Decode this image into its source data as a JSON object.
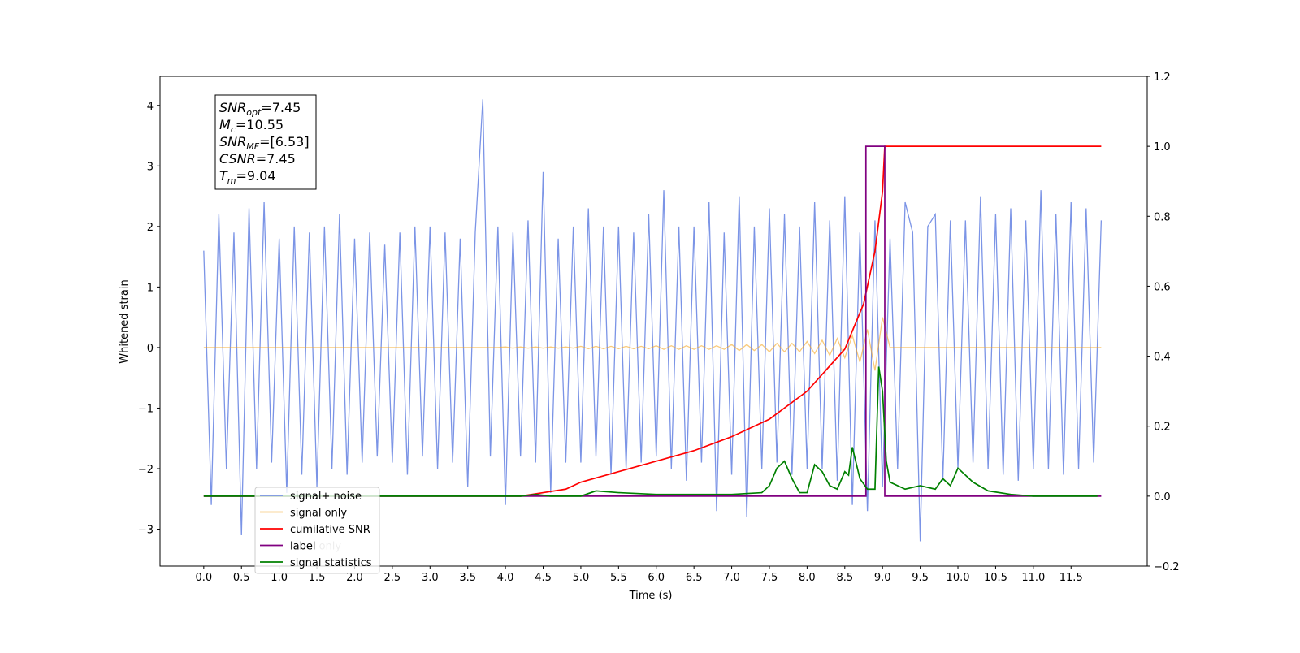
{
  "chart_data": {
    "type": "line",
    "xlabel": "Time (s)",
    "ylabel": "Whitened strain",
    "xlim": [
      -0.58,
      12.51
    ],
    "ylim": [
      -3.61,
      4.48
    ],
    "y2lim": [
      -0.2,
      1.2
    ],
    "xticks": [
      {
        "value": 0,
        "label": "0.0"
      },
      0.5,
      {
        "value": 1,
        "label": "1.0"
      },
      1.5,
      {
        "value": 2,
        "label": "2.0"
      },
      2.5,
      {
        "value": 3,
        "label": "3.0"
      },
      3.5,
      {
        "value": 4,
        "label": "4.0"
      },
      4.5,
      {
        "value": 5,
        "label": "5.0"
      },
      5.5,
      {
        "value": 6,
        "label": "6.0"
      },
      6.5,
      {
        "value": 7,
        "label": "7.0"
      },
      7.5,
      {
        "value": 8,
        "label": "8.0"
      },
      8.5,
      {
        "value": 9,
        "label": "9.0"
      },
      9.5,
      {
        "value": 10,
        "label": "10.0"
      },
      10.5,
      {
        "value": 11,
        "label": "11.0"
      },
      11.5
    ],
    "yticks": [
      {
        "value": -3,
        "label": "−3"
      },
      {
        "value": -2,
        "label": "−2"
      },
      {
        "value": -1,
        "label": "−1"
      },
      0,
      1,
      2,
      3,
      4
    ],
    "y2ticks": [
      {
        "value": -0.2,
        "label": "−0.2"
      },
      {
        "value": 0,
        "label": "0.0"
      },
      0.2,
      0.4,
      0.6,
      0.8,
      {
        "value": 1,
        "label": "1.0"
      },
      1.2
    ],
    "annotations": [
      {
        "main": "SNR",
        "sub": "opt",
        "rest": "=7.45"
      },
      {
        "main": "M",
        "sub": "c",
        "rest": "=10.55"
      },
      {
        "main": "SNR",
        "sub": "MF",
        "rest": "=[6.53]"
      },
      {
        "main": "CSNR",
        "sub": "",
        "rest": "=7.45"
      },
      {
        "main": "T",
        "sub": "m",
        "rest": "=9.04"
      }
    ],
    "x": [
      0,
      0.1,
      0.2,
      0.3,
      0.4,
      0.5,
      0.6,
      0.7,
      0.8,
      0.9,
      1,
      1.1,
      1.2,
      1.3,
      1.4,
      1.5,
      1.6,
      1.7,
      1.8,
      1.9,
      2,
      2.1,
      2.2,
      2.3,
      2.4,
      2.5,
      2.6,
      2.7,
      2.8,
      2.9,
      3,
      3.1,
      3.2,
      3.3,
      3.4,
      3.5,
      3.6,
      3.7,
      3.8,
      3.9,
      4,
      4.1,
      4.2,
      4.3,
      4.4,
      4.5,
      4.6,
      4.7,
      4.8,
      4.9,
      5,
      5.1,
      5.2,
      5.3,
      5.4,
      5.5,
      5.6,
      5.7,
      5.8,
      5.9,
      6,
      6.1,
      6.2,
      6.3,
      6.4,
      6.5,
      6.6,
      6.7,
      6.8,
      6.9,
      7,
      7.1,
      7.2,
      7.3,
      7.4,
      7.5,
      7.6,
      7.7,
      7.8,
      7.9,
      8,
      8.1,
      8.2,
      8.3,
      8.4,
      8.5,
      8.6,
      8.7,
      8.8,
      8.9,
      9,
      9.1,
      9.2,
      9.3,
      9.4,
      9.5,
      9.6,
      9.7,
      9.8,
      9.9,
      10,
      10.1,
      10.2,
      10.3,
      10.4,
      10.5,
      10.6,
      10.7,
      10.8,
      10.9,
      11,
      11.1,
      11.2,
      11.3,
      11.4,
      11.5,
      11.6,
      11.7,
      11.8,
      11.9
    ],
    "series": [
      {
        "name": "signal+ noise",
        "color": "#7b94e6",
        "axis": "y",
        "values": [
          1.6,
          -2.6,
          2.2,
          -2.0,
          1.9,
          -3.1,
          2.3,
          -2.0,
          2.4,
          -1.9,
          1.8,
          -2.4,
          2.0,
          -2.1,
          1.9,
          -2.3,
          2.0,
          -2.0,
          2.2,
          -2.1,
          1.8,
          -1.9,
          1.9,
          -1.8,
          1.7,
          -1.9,
          1.9,
          -2.1,
          2.0,
          -1.8,
          2.0,
          -2.0,
          1.9,
          -1.9,
          1.8,
          -2.3,
          1.9,
          4.1,
          -1.8,
          2.0,
          -2.6,
          1.9,
          -1.8,
          2.1,
          -1.9,
          2.9,
          -2.4,
          1.8,
          -1.9,
          2.0,
          -1.9,
          2.3,
          -1.8,
          2.0,
          -2.1,
          2.0,
          -2.0,
          1.9,
          -1.9,
          2.2,
          -1.8,
          2.6,
          -2.0,
          2.0,
          -2.2,
          2.0,
          -1.9,
          2.4,
          -2.7,
          1.9,
          -2.1,
          2.5,
          -2.8,
          2.0,
          -2.0,
          2.3,
          -1.9,
          2.2,
          -2.1,
          2.0,
          -2.0,
          2.4,
          -2.0,
          2.1,
          -2.2,
          2.5,
          -2.6,
          1.9,
          -2.7,
          2.1,
          -2.3,
          1.8,
          -2.0,
          2.4,
          1.9,
          -3.2,
          2.0,
          2.2,
          -2.2,
          2.1,
          -2.0,
          2.1,
          -1.9,
          2.5,
          -2.0,
          2.2,
          -2.1,
          2.3,
          -2.2,
          2.1,
          -2.0,
          2.6,
          -2.0,
          2.2,
          -2.1,
          2.4,
          -2.0,
          2.3,
          -1.9,
          2.1
        ]
      },
      {
        "name": "signal only",
        "color": "#f5a623",
        "axis": "y",
        "values": [
          0,
          0,
          0,
          0,
          0,
          0,
          0,
          0,
          0,
          0,
          0,
          0,
          0,
          0,
          0,
          0,
          0,
          0,
          0,
          0,
          0,
          0,
          0,
          0,
          0,
          0,
          0,
          0,
          0,
          0,
          0,
          0,
          0,
          0,
          0,
          0,
          0,
          0,
          0,
          0,
          0.01,
          -0.01,
          0.01,
          -0.01,
          0.01,
          -0.01,
          0.01,
          -0.01,
          0.01,
          -0.01,
          0.02,
          -0.02,
          0.02,
          -0.02,
          0.02,
          -0.02,
          0.02,
          -0.02,
          0.02,
          -0.02,
          0.03,
          -0.03,
          0.03,
          -0.03,
          0.03,
          -0.03,
          0.03,
          -0.03,
          0.03,
          -0.03,
          0.05,
          -0.05,
          0.05,
          -0.05,
          0.05,
          -0.07,
          0.07,
          -0.07,
          0.07,
          -0.07,
          0.1,
          -0.1,
          0.12,
          -0.13,
          0.15,
          -0.17,
          0.2,
          -0.24,
          0.3,
          -0.38,
          0.5,
          0,
          0,
          0,
          0,
          0,
          0,
          0,
          0,
          0,
          0,
          0,
          0,
          0,
          0,
          0,
          0,
          0,
          0,
          0,
          0,
          0,
          0,
          0,
          0,
          0,
          0,
          0,
          0,
          0
        ]
      },
      {
        "name": "cumilative SNR",
        "color": "#ff0000",
        "axis": "y2",
        "x": [
          0,
          4.2,
          4.5,
          4.8,
          5.0,
          5.5,
          6.0,
          6.5,
          7.0,
          7.5,
          8.0,
          8.5,
          8.75,
          8.9,
          9.0,
          9.03,
          11.9
        ],
        "values": [
          0,
          0,
          0.01,
          0.02,
          0.04,
          0.07,
          0.1,
          0.13,
          0.17,
          0.22,
          0.3,
          0.42,
          0.55,
          0.7,
          0.87,
          1,
          1
        ]
      },
      {
        "name": "label",
        "color": "#800080",
        "axis": "y2",
        "x": [
          0,
          8.78,
          8.78,
          9.03,
          9.03,
          11.9
        ],
        "values": [
          0,
          0,
          1,
          1,
          0,
          0
        ]
      },
      {
        "name": "label only",
        "color": "#800080",
        "axis": "y2",
        "x": [
          0,
          8.78,
          8.78,
          9.03,
          9.03,
          11.9
        ],
        "values": [
          0,
          0,
          1,
          1,
          0,
          0
        ]
      },
      {
        "name": "signal statistics",
        "color": "#008000",
        "axis": "y2",
        "x": [
          0,
          4.2,
          4.4,
          4.6,
          5.0,
          5.2,
          5.5,
          6.0,
          7.0,
          7.4,
          7.5,
          7.6,
          7.7,
          7.8,
          7.9,
          8.0,
          8.1,
          8.2,
          8.3,
          8.4,
          8.5,
          8.55,
          8.6,
          8.7,
          8.8,
          8.9,
          8.95,
          9.0,
          9.05,
          9.1,
          9.3,
          9.5,
          9.7,
          9.8,
          9.9,
          10.0,
          10.1,
          10.2,
          10.4,
          10.7,
          11.0,
          11.85
        ],
        "values": [
          0,
          0,
          0.005,
          0,
          0,
          0.015,
          0.01,
          0.005,
          0.005,
          0.01,
          0.03,
          0.08,
          0.1,
          0.05,
          0.01,
          0.01,
          0.09,
          0.07,
          0.03,
          0.02,
          0.07,
          0.06,
          0.14,
          0.05,
          0.02,
          0.02,
          0.37,
          0.3,
          0.1,
          0.04,
          0.02,
          0.03,
          0.02,
          0.05,
          0.03,
          0.08,
          0.06,
          0.04,
          0.015,
          0.005,
          0,
          0
        ]
      }
    ]
  }
}
